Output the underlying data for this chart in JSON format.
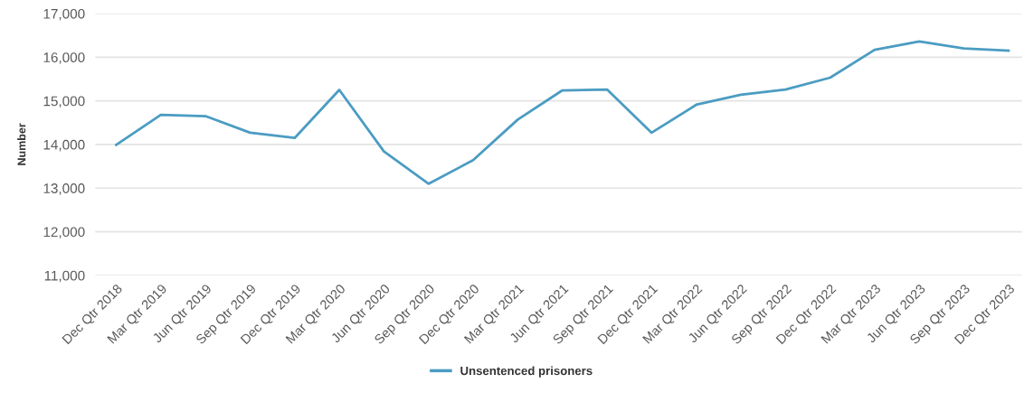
{
  "chart_data": {
    "type": "line",
    "ylabel": "Number",
    "categories": [
      "Dec Qtr 2018",
      "Mar Qtr 2019",
      "Jun Qtr 2019",
      "Sep Qtr 2019",
      "Dec Qtr 2019",
      "Mar Qtr 2020",
      "Jun Qtr 2020",
      "Sep Qtr 2020",
      "Dec Qtr 2020",
      "Mar Qtr 2021",
      "Jun Qtr 2021",
      "Sep Qtr 2021",
      "Dec Qtr 2021",
      "Mar Qtr 2022",
      "Jun Qtr 2022",
      "Sep Qtr 2022",
      "Dec Qtr 2022",
      "Mar Qtr 2023",
      "Jun Qtr 2023",
      "Sep Qtr 2023",
      "Dec Qtr 2023"
    ],
    "series": [
      {
        "name": "Unsentenced prisoners",
        "color": "#4b9cc2",
        "values": [
          13990,
          14680,
          14650,
          14270,
          14150,
          15250,
          13840,
          13100,
          13640,
          14570,
          15240,
          15260,
          14270,
          14910,
          15140,
          15260,
          15530,
          16170,
          16360,
          16200,
          16150
        ]
      }
    ],
    "ylim": [
      11000,
      17000
    ],
    "yticks": [
      {
        "value": 11000,
        "label": "11,000"
      },
      {
        "value": 12000,
        "label": "12,000"
      },
      {
        "value": 13000,
        "label": "13,000"
      },
      {
        "value": 14000,
        "label": "14,000"
      },
      {
        "value": 15000,
        "label": "15,000"
      },
      {
        "value": 16000,
        "label": "16,000"
      },
      {
        "value": 17000,
        "label": "17,000"
      }
    ],
    "grid": "y",
    "legend": "bottom"
  }
}
